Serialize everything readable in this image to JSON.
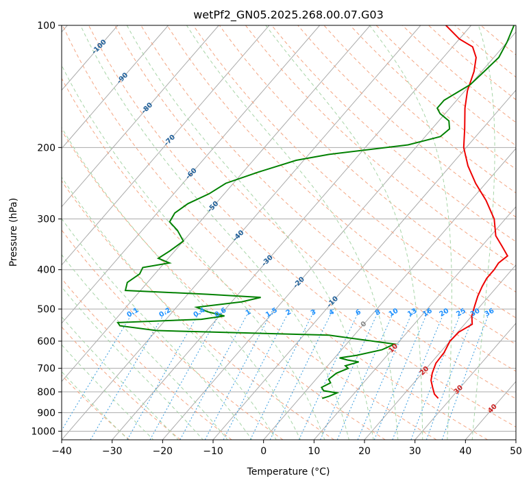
{
  "chart_data": {
    "type": "line",
    "chart_kind": "skew-T log-P diagram",
    "title": "wetPf2_GN05.2025.268.00.07.G03",
    "xlabel": "Temperature (°C)",
    "ylabel": "Pressure (hPa)",
    "xlim": [
      -40,
      50
    ],
    "ylim": [
      1050,
      100
    ],
    "y_scale": "log",
    "grid": true,
    "x_ticks": [
      "−40",
      "−30",
      "−20",
      "−10",
      "0",
      "10",
      "20",
      "30",
      "40",
      "50"
    ],
    "y_ticks": [
      "100",
      "200",
      "300",
      "400",
      "500",
      "600",
      "700",
      "800",
      "900",
      "1000"
    ],
    "colors": {
      "temperature": "#ee0000",
      "dewpoint": "#008000",
      "isotherm": "#aaaaaa",
      "dry_adiabat": "#f4a582",
      "moist_adiabat": "#a6d4a6",
      "mixing_ratio": "#3399dd",
      "dry_adiabat_label": "#cc2222",
      "moist_adiabat_label": "#1f5f99",
      "mixing_ratio_label": "#1e90ff",
      "zero_label": "#888888"
    },
    "isotherm_labels": [
      {
        "text": "-100",
        "t": -100,
        "p": 113
      },
      {
        "text": "-90",
        "t": -90,
        "p": 135
      },
      {
        "text": "-80",
        "t": -80,
        "p": 160
      },
      {
        "text": "-70",
        "t": -70,
        "p": 192
      },
      {
        "text": "-60",
        "t": -60,
        "p": 232
      },
      {
        "text": "-50",
        "t": -50,
        "p": 280
      },
      {
        "text": "-40",
        "t": -40,
        "p": 330
      },
      {
        "text": "-30",
        "t": -30,
        "p": 380
      },
      {
        "text": "-20",
        "t": -20,
        "p": 430
      },
      {
        "text": "-10",
        "t": -10,
        "p": 480
      },
      {
        "text": "0",
        "t": 0,
        "p": 545
      }
    ],
    "dry_adiabat_labels": [
      {
        "text": "10",
        "t": 10,
        "p": 625
      },
      {
        "text": "20",
        "t": 20,
        "p": 710
      },
      {
        "text": "30",
        "t": 30,
        "p": 790
      },
      {
        "text": "40",
        "t": 40,
        "p": 880
      }
    ],
    "mixing_ratio_labels": [
      "0.1",
      "0.2",
      "0.4",
      "0.6",
      "1",
      "1.5",
      "2",
      "3",
      "4",
      "6",
      "8",
      "10",
      "13",
      "16",
      "20",
      "25",
      "30",
      "36"
    ],
    "series": [
      {
        "name": "Temperature",
        "key": "temperature",
        "points": [
          [
            27.5,
            830
          ],
          [
            26.0,
            810
          ],
          [
            24.5,
            780
          ],
          [
            23.0,
            750
          ],
          [
            22.0,
            720
          ],
          [
            21.5,
            700
          ],
          [
            21.0,
            680
          ],
          [
            20.8,
            640
          ],
          [
            20.0,
            600
          ],
          [
            20.2,
            570
          ],
          [
            21.5,
            545
          ],
          [
            20.0,
            520
          ],
          [
            18.8,
            490
          ],
          [
            17.8,
            465
          ],
          [
            17.0,
            440
          ],
          [
            16.5,
            420
          ],
          [
            16.5,
            400
          ],
          [
            16.2,
            385
          ],
          [
            16.8,
            370
          ],
          [
            14.0,
            350
          ],
          [
            11.0,
            330
          ],
          [
            7.8,
            300
          ],
          [
            3.0,
            270
          ],
          [
            -2.0,
            245
          ],
          [
            -6.5,
            222
          ],
          [
            -10.5,
            200
          ],
          [
            -13.5,
            180
          ],
          [
            -17.0,
            160
          ],
          [
            -19.5,
            145
          ],
          [
            -21.5,
            130
          ],
          [
            -23.5,
            120
          ],
          [
            -26.0,
            113
          ],
          [
            -30.0,
            108
          ],
          [
            -35.0,
            100
          ]
        ]
      },
      {
        "name": "Dewpoint",
        "key": "dewpoint",
        "points": [
          [
            4.5,
            830
          ],
          [
            5.5,
            820
          ],
          [
            6.5,
            805
          ],
          [
            3.5,
            795
          ],
          [
            2.5,
            780
          ],
          [
            3.5,
            760
          ],
          [
            2.5,
            745
          ],
          [
            3.0,
            720
          ],
          [
            4.5,
            700
          ],
          [
            3.5,
            690
          ],
          [
            5.5,
            675
          ],
          [
            3.0,
            668
          ],
          [
            1.0,
            660
          ],
          [
            4.0,
            650
          ],
          [
            8.0,
            630
          ],
          [
            9.5,
            610
          ],
          [
            -5.0,
            580
          ],
          [
            -40.0,
            565
          ],
          [
            -48.0,
            550
          ],
          [
            -49.0,
            540
          ],
          [
            -33.0,
            530
          ],
          [
            -29.0,
            520
          ],
          [
            -33.0,
            508
          ],
          [
            -36.0,
            495
          ],
          [
            -28.0,
            480
          ],
          [
            -25.0,
            468
          ],
          [
            -36.0,
            460
          ],
          [
            -53.0,
            450
          ],
          [
            -54.0,
            430
          ],
          [
            -53.0,
            410
          ],
          [
            -53.5,
            395
          ],
          [
            -49.0,
            385
          ],
          [
            -52.0,
            375
          ],
          [
            -51.0,
            360
          ],
          [
            -50.0,
            340
          ],
          [
            -53.0,
            320
          ],
          [
            -56.0,
            305
          ],
          [
            -56.5,
            290
          ],
          [
            -55.5,
            275
          ],
          [
            -53.0,
            260
          ],
          [
            -51.5,
            245
          ],
          [
            -47.0,
            230
          ],
          [
            -41.5,
            215
          ],
          [
            -36.0,
            208
          ],
          [
            -22.0,
            197
          ],
          [
            -17.0,
            188
          ],
          [
            -16.5,
            180
          ],
          [
            -18.0,
            172
          ],
          [
            -21.0,
            165
          ],
          [
            -22.5,
            160
          ],
          [
            -22.5,
            153
          ],
          [
            -21.0,
            145
          ],
          [
            -20.0,
            140
          ],
          [
            -19.5,
            130
          ],
          [
            -19.0,
            120
          ],
          [
            -20.0,
            110
          ],
          [
            -21.5,
            100
          ]
        ]
      }
    ]
  }
}
